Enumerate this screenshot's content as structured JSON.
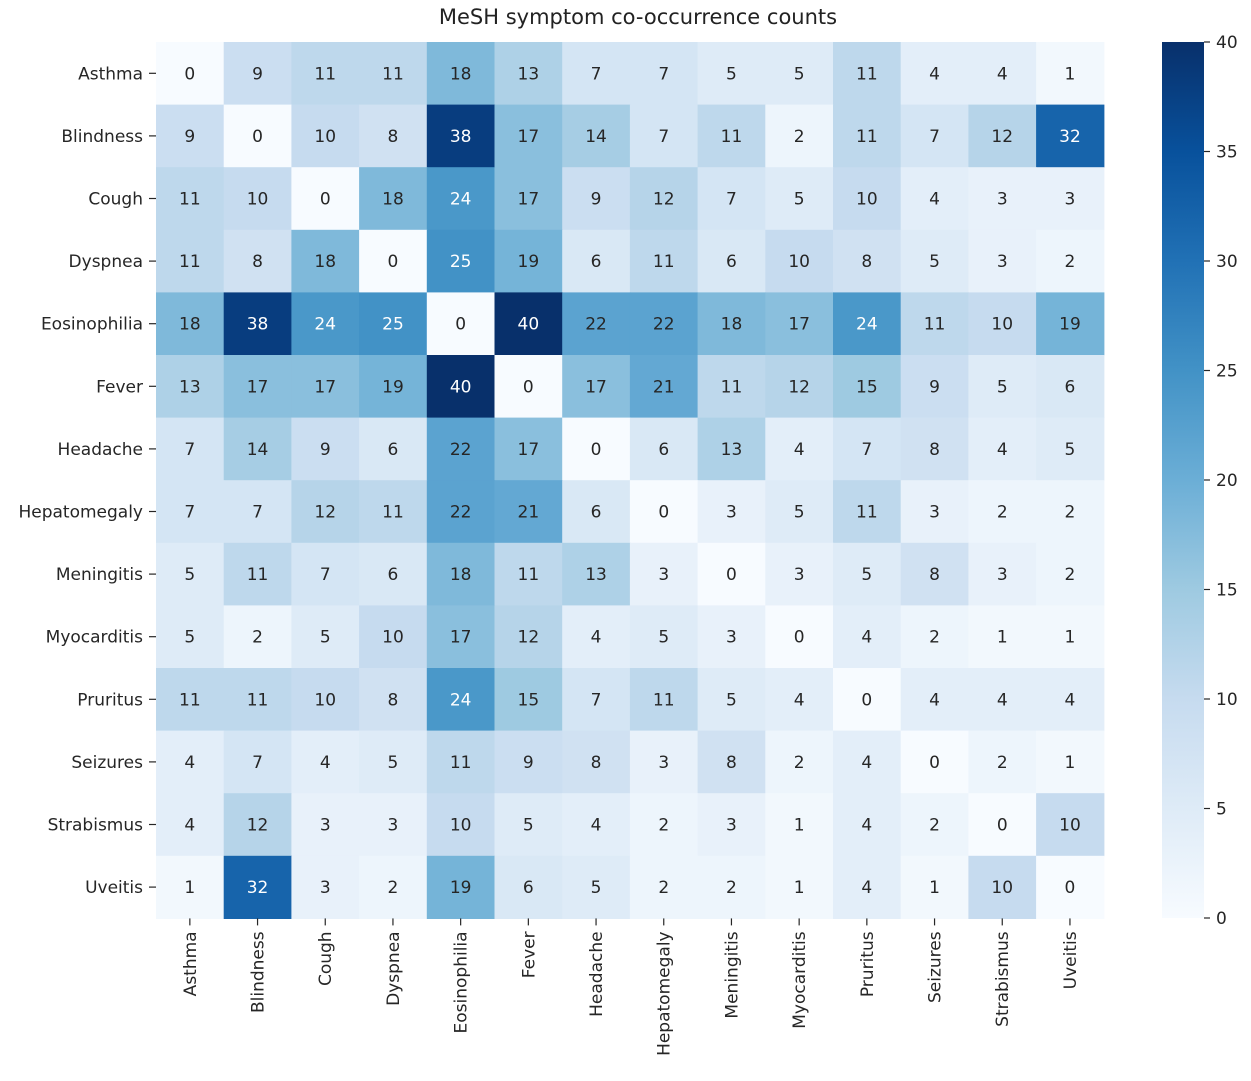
{
  "chart_data": {
    "type": "heatmap",
    "title": "MeSH symptom co-occurrence counts",
    "xlabel": "",
    "ylabel": "",
    "colormap": "Blues",
    "colors": {
      "low": "#f7fbff",
      "high": "#08306b"
    },
    "vmin": 0,
    "vmax": 40,
    "colorbar_ticks": [
      0,
      5,
      10,
      15,
      20,
      25,
      30,
      35,
      40
    ],
    "rows": [
      "Asthma",
      "Blindness",
      "Cough",
      "Dyspnea",
      "Eosinophilia",
      "Fever",
      "Headache",
      "Hepatomegaly",
      "Meningitis",
      "Myocarditis",
      "Pruritus",
      "Seizures",
      "Strabismus",
      "Uveitis"
    ],
    "columns": [
      "Asthma",
      "Blindness",
      "Cough",
      "Dyspnea",
      "Eosinophilia",
      "Fever",
      "Headache",
      "Hepatomegaly",
      "Meningitis",
      "Myocarditis",
      "Pruritus",
      "Seizures",
      "Strabismus",
      "Uveitis"
    ],
    "values": [
      [
        0,
        9,
        11,
        11,
        18,
        13,
        7,
        7,
        5,
        5,
        11,
        4,
        4,
        1
      ],
      [
        9,
        0,
        10,
        8,
        38,
        17,
        14,
        7,
        11,
        2,
        11,
        7,
        12,
        32
      ],
      [
        11,
        10,
        0,
        18,
        24,
        17,
        9,
        12,
        7,
        5,
        10,
        4,
        3,
        3
      ],
      [
        11,
        8,
        18,
        0,
        25,
        19,
        6,
        11,
        6,
        10,
        8,
        5,
        3,
        2
      ],
      [
        18,
        38,
        24,
        25,
        0,
        40,
        22,
        22,
        18,
        17,
        24,
        11,
        10,
        19
      ],
      [
        13,
        17,
        17,
        19,
        40,
        0,
        17,
        21,
        11,
        12,
        15,
        9,
        5,
        6
      ],
      [
        7,
        14,
        9,
        6,
        22,
        17,
        0,
        6,
        13,
        4,
        7,
        8,
        4,
        5
      ],
      [
        7,
        7,
        12,
        11,
        22,
        21,
        6,
        0,
        3,
        5,
        11,
        3,
        2,
        2
      ],
      [
        5,
        11,
        7,
        6,
        18,
        11,
        13,
        3,
        0,
        3,
        5,
        8,
        3,
        2
      ],
      [
        5,
        2,
        5,
        10,
        17,
        12,
        4,
        5,
        3,
        0,
        4,
        2,
        1,
        1
      ],
      [
        11,
        11,
        10,
        8,
        24,
        15,
        7,
        11,
        5,
        4,
        0,
        4,
        4,
        4
      ],
      [
        4,
        7,
        4,
        5,
        11,
        9,
        8,
        3,
        8,
        2,
        4,
        0,
        2,
        1
      ],
      [
        4,
        12,
        3,
        3,
        10,
        5,
        4,
        2,
        3,
        1,
        4,
        2,
        0,
        10
      ],
      [
        1,
        32,
        3,
        2,
        19,
        6,
        5,
        2,
        2,
        1,
        4,
        1,
        10,
        0
      ]
    ],
    "annotations": true,
    "legend": "colorbar-right"
  }
}
